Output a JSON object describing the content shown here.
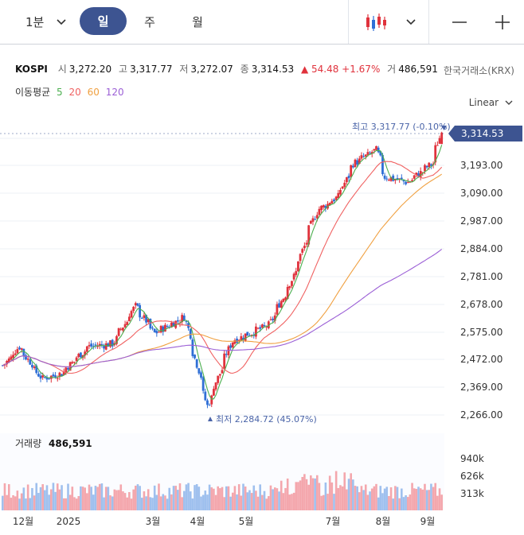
{
  "toolbar": {
    "interval_label": "1분",
    "period_day": "일",
    "period_week": "주",
    "period_month": "월"
  },
  "info": {
    "symbol": "KOSPI",
    "open_label": "시",
    "open": "3,272.20",
    "high_label": "고",
    "high": "3,317.77",
    "low_label": "저",
    "low": "3,272.07",
    "close_label": "종",
    "close": "3,314.53",
    "change": "▲ 54.48 +1.67%",
    "volume_label": "거",
    "volume": "486,591",
    "exchange": "한국거래소(KRX)"
  },
  "moving_average": {
    "label": "이동평균",
    "periods": [
      {
        "period": "5",
        "color": "#4caf50"
      },
      {
        "period": "20",
        "color": "#f06262"
      },
      {
        "period": "60",
        "color": "#f0a040"
      },
      {
        "period": "120",
        "color": "#9b5fd6"
      }
    ]
  },
  "scale_mode": "Linear",
  "colors": {
    "up": "#e0323c",
    "down": "#2f6fd6",
    "accent": "#3d5491",
    "price_tag": "#3d5491"
  },
  "chart_data": {
    "type": "candlestick",
    "y_ticks": [
      "3,193.00",
      "3,090.00",
      "2,987.00",
      "2,884.00",
      "2,781.00",
      "2,678.00",
      "2,575.00",
      "2,472.00",
      "2,369.00",
      "2,266.00"
    ],
    "ylim": [
      2266,
      3330
    ],
    "x_labels": [
      "12월",
      "2025",
      "3월",
      "4월",
      "5월",
      "7월",
      "8월",
      "9월"
    ],
    "last_price": "3,314.53",
    "high_annotation": "최고 3,317.77 (-0.10%)",
    "low_annotation": "최저 2,284.72 (45.07%)",
    "approx_close_path": [
      {
        "date": "2024-11-25",
        "close": 2450
      },
      {
        "date": "2024-12-05",
        "close": 2520
      },
      {
        "date": "2024-12-20",
        "close": 2400
      },
      {
        "date": "2025-01-02",
        "close": 2420
      },
      {
        "date": "2025-01-20",
        "close": 2520
      },
      {
        "date": "2025-02-05",
        "close": 2530
      },
      {
        "date": "2025-02-20",
        "close": 2670
      },
      {
        "date": "2025-03-05",
        "close": 2570
      },
      {
        "date": "2025-03-25",
        "close": 2630
      },
      {
        "date": "2025-04-09",
        "close": 2300
      },
      {
        "date": "2025-04-25",
        "close": 2540
      },
      {
        "date": "2025-05-20",
        "close": 2600
      },
      {
        "date": "2025-06-05",
        "close": 2780
      },
      {
        "date": "2025-06-20",
        "close": 3020
      },
      {
        "date": "2025-07-05",
        "close": 3080
      },
      {
        "date": "2025-07-15",
        "close": 3200
      },
      {
        "date": "2025-07-30",
        "close": 3250
      },
      {
        "date": "2025-08-05",
        "close": 3150
      },
      {
        "date": "2025-08-20",
        "close": 3130
      },
      {
        "date": "2025-09-05",
        "close": 3200
      },
      {
        "date": "2025-09-11",
        "close": 3314.53
      }
    ],
    "volume": {
      "label": "거래량",
      "value": "486,591",
      "y_ticks": [
        "940k",
        "626k",
        "313k"
      ]
    }
  }
}
